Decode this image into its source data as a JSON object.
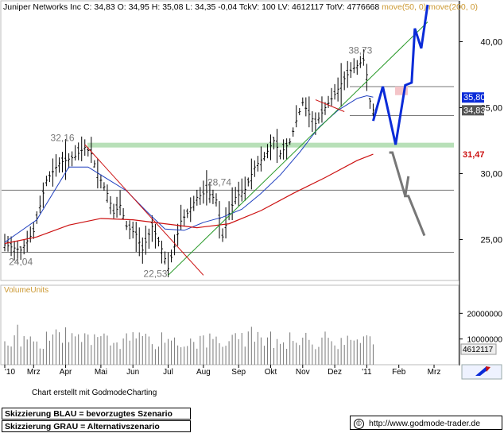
{
  "header": {
    "title": "Juniper Networks Inc",
    "quote": "C: 34,83  O: 34,95  H: 35,08  L: 34,35  -0,04  TckV: 100  LV: 4612117  TotV: 4776668",
    "ma_label": "move(50, 0)  move(200, 0)"
  },
  "colors": {
    "price_bars": "#000000",
    "ma50": "#1f3fbf",
    "ma200": "#cc1111",
    "trend_up": "#2a9a2a",
    "trend_down": "#cc1111",
    "support_band": "#b8e0b8",
    "scenario_blue": "#0a2bd8",
    "scenario_gray": "#777777",
    "badge_ma50": "#0a2bd8",
    "badge_last": "#555555",
    "badge_ma200": "#cc1111"
  },
  "chart_data": {
    "type": "line",
    "title": "Juniper Networks Inc",
    "y_axis_ticks": [
      "40,00",
      "35,00",
      "30,00",
      "25,00"
    ],
    "y_ticks_values": [
      40,
      35,
      30,
      25
    ],
    "ylim": [
      21.9,
      42.8
    ],
    "x_axis_ticks": [
      "'10",
      "Mrz",
      "Apr",
      "Mai",
      "Jun",
      "Jul",
      "Aug",
      "Sep",
      "Okt",
      "Nov",
      "Dez",
      "'11",
      "Feb",
      "Mrz"
    ],
    "x_tick_index": [
      0,
      9,
      19,
      30,
      40,
      51,
      62,
      73,
      83,
      93,
      103,
      113,
      123,
      134
    ],
    "annotations": [
      {
        "text": "32,16",
        "value": 32.16
      },
      {
        "text": "28,74",
        "value": 28.74
      },
      {
        "text": "24,04",
        "value": 24.04
      },
      {
        "text": "22,53",
        "value": 22.53
      },
      {
        "text": "38,73",
        "value": 38.73
      }
    ],
    "badges": [
      {
        "text": "35,80",
        "value": 35.8,
        "kind": "ma50"
      },
      {
        "text": "34,83",
        "value": 34.83,
        "kind": "last"
      },
      {
        "text": "31,47",
        "value": 31.47,
        "kind": "ma200"
      }
    ],
    "horizontal_levels": [
      32.16,
      28.74,
      24.04,
      36.6,
      34.4
    ],
    "price_path": [
      [
        0,
        24.6
      ],
      [
        5,
        24.2
      ],
      [
        9,
        25.6
      ],
      [
        13,
        29.5
      ],
      [
        17,
        30.8
      ],
      [
        22,
        31.3
      ],
      [
        25,
        32.0
      ],
      [
        27,
        31.5
      ],
      [
        29,
        30.0
      ],
      [
        32,
        28.5
      ],
      [
        34,
        27.0
      ],
      [
        36,
        27.6
      ],
      [
        38,
        26.0
      ],
      [
        41,
        25.4
      ],
      [
        43,
        24.2
      ],
      [
        46,
        26.0
      ],
      [
        49,
        24.3
      ],
      [
        51,
        22.8
      ],
      [
        53,
        24.5
      ],
      [
        55,
        26.4
      ],
      [
        57,
        27.0
      ],
      [
        60,
        28.2
      ],
      [
        63,
        28.6
      ],
      [
        66,
        28.0
      ],
      [
        68,
        25.2
      ],
      [
        70,
        27.0
      ],
      [
        72,
        28.2
      ],
      [
        75,
        28.8
      ],
      [
        78,
        30.5
      ],
      [
        81,
        31.3
      ],
      [
        84,
        32.5
      ],
      [
        86,
        31.5
      ],
      [
        89,
        32.4
      ],
      [
        91,
        34.0
      ],
      [
        93,
        35.4
      ],
      [
        95,
        34.5
      ],
      [
        97,
        33.8
      ],
      [
        100,
        35.0
      ],
      [
        103,
        36.0
      ],
      [
        106,
        37.2
      ],
      [
        108,
        37.8
      ],
      [
        110,
        38.2
      ],
      [
        112,
        38.6
      ],
      [
        113,
        37.5
      ],
      [
        114,
        35.5
      ],
      [
        115,
        34.83
      ]
    ],
    "volume_ylim": [
      0,
      30000000
    ],
    "volume_ticks": [
      "20000000",
      "10000000"
    ],
    "volume_tick_values": [
      20000000,
      10000000
    ],
    "volume_last": "4612117",
    "series": [
      {
        "name": "move(50, 0)",
        "points": [
          [
            0,
            24.8
          ],
          [
            10,
            26.5
          ],
          [
            20,
            30.5
          ],
          [
            26,
            30.5
          ],
          [
            32,
            29.6
          ],
          [
            38,
            28.7
          ],
          [
            44,
            27.2
          ],
          [
            50,
            25.8
          ],
          [
            56,
            25.7
          ],
          [
            62,
            26.3
          ],
          [
            68,
            26.7
          ],
          [
            74,
            27.3
          ],
          [
            80,
            28.5
          ],
          [
            86,
            29.9
          ],
          [
            92,
            31.6
          ],
          [
            98,
            33.5
          ],
          [
            104,
            34.8
          ],
          [
            110,
            35.7
          ],
          [
            113,
            35.9
          ],
          [
            115,
            35.8
          ]
        ]
      },
      {
        "name": "move(200, 0)",
        "points": [
          [
            0,
            24.7
          ],
          [
            10,
            25.2
          ],
          [
            20,
            26.1
          ],
          [
            30,
            26.6
          ],
          [
            40,
            26.5
          ],
          [
            50,
            26.2
          ],
          [
            60,
            25.9
          ],
          [
            70,
            26.2
          ],
          [
            80,
            27.2
          ],
          [
            90,
            28.5
          ],
          [
            100,
            29.7
          ],
          [
            110,
            31.0
          ],
          [
            115,
            31.47
          ]
        ]
      }
    ],
    "trend_lines": [
      {
        "kind": "up",
        "points": [
          [
            51,
            22.3
          ],
          [
            132,
            41.5
          ]
        ]
      },
      {
        "kind": "down",
        "points": [
          [
            25,
            32.2
          ],
          [
            62,
            22.3
          ]
        ]
      },
      {
        "kind": "down",
        "points": [
          [
            97,
            35.6
          ],
          [
            106,
            34.7
          ]
        ]
      }
    ],
    "scenario_blue": [
      [
        115,
        34.0
      ],
      [
        118,
        36.6
      ],
      [
        122,
        32.2
      ],
      [
        125,
        36.7
      ],
      [
        127,
        36.9
      ],
      [
        128,
        41.0
      ],
      [
        130,
        39.5
      ],
      [
        132,
        42.8
      ]
    ],
    "scenario_gray": [
      [
        120,
        31.6
      ],
      [
        121,
        31.6
      ],
      [
        125,
        28.3
      ],
      [
        126,
        29.8
      ],
      [
        125,
        28.3
      ],
      [
        126,
        28.3
      ],
      [
        131,
        25.3
      ]
    ]
  },
  "footer": {
    "credit": "Chart erstellt mit GodmodeCharting",
    "legend_blue": "Skizzierung BLAU = bevorzugtes Szenario",
    "legend_gray": "Skizzierung GRAU = Alternativszenario",
    "url": "http://www.godmode-trader.de",
    "copyright_symbol": "©"
  },
  "volume_label": "VolumeUnits"
}
